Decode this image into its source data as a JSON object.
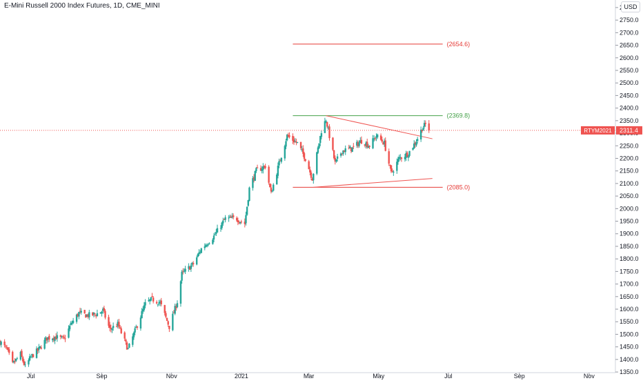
{
  "header": {
    "title": "E-Mini Russell 2000 Index Futures, 1D, CME_MINI",
    "currency": "USD"
  },
  "chart_data": {
    "type": "candlestick",
    "title": "E-Mini Russell 2000 Index Futures, 1D, CME_MINI",
    "ylim": [
      1320,
      2830
    ],
    "y_ticks": [
      1350,
      1400,
      1450,
      1500,
      1550,
      1600,
      1650,
      1700,
      1750,
      1800,
      1850,
      1900,
      1950,
      2000,
      2050,
      2100,
      2150,
      2200,
      2250,
      2300,
      2350,
      2400,
      2450,
      2500,
      2550,
      2600,
      2650,
      2700,
      2750,
      2800
    ],
    "x_ticks": [
      {
        "label": "Jul",
        "date": "2020-07-01"
      },
      {
        "label": "Sep",
        "date": "2020-09-01"
      },
      {
        "label": "Nov",
        "date": "2020-11-01"
      },
      {
        "label": "2021",
        "date": "2021-01-01"
      },
      {
        "label": "Mar",
        "date": "2021-03-01"
      },
      {
        "label": "May",
        "date": "2021-05-01"
      },
      {
        "label": "Jul",
        "date": "2021-07-01"
      },
      {
        "label": "Sep",
        "date": "2021-09-01"
      },
      {
        "label": "Nov",
        "date": "2021-11-01"
      }
    ],
    "xlim": [
      "2020-06-04",
      "2021-11-24"
    ],
    "colors": {
      "up": "#26a69a",
      "down": "#ef5350",
      "resistance": "#43a047",
      "level": "#e53935",
      "trend": "#ef5350",
      "axis_text": "#131722"
    },
    "price_path": [
      [
        "2020-06-04",
        1470
      ],
      [
        "2020-06-10",
        1440
      ],
      [
        "2020-06-15",
        1380
      ],
      [
        "2020-06-22",
        1420
      ],
      [
        "2020-06-26",
        1370
      ],
      [
        "2020-07-01",
        1410
      ],
      [
        "2020-07-08",
        1440
      ],
      [
        "2020-07-15",
        1485
      ],
      [
        "2020-07-22",
        1490
      ],
      [
        "2020-07-30",
        1480
      ],
      [
        "2020-08-05",
        1540
      ],
      [
        "2020-08-12",
        1585
      ],
      [
        "2020-08-19",
        1575
      ],
      [
        "2020-08-27",
        1580
      ],
      [
        "2020-09-02",
        1595
      ],
      [
        "2020-09-08",
        1520
      ],
      [
        "2020-09-15",
        1540
      ],
      [
        "2020-09-24",
        1440
      ],
      [
        "2020-10-01",
        1525
      ],
      [
        "2020-10-09",
        1620
      ],
      [
        "2020-10-15",
        1640
      ],
      [
        "2020-10-22",
        1625
      ],
      [
        "2020-10-30",
        1530
      ],
      [
        "2020-11-06",
        1630
      ],
      [
        "2020-11-10",
        1740
      ],
      [
        "2020-11-20",
        1780
      ],
      [
        "2020-11-27",
        1840
      ],
      [
        "2020-12-08",
        1890
      ],
      [
        "2020-12-18",
        1960
      ],
      [
        "2020-12-28",
        1960
      ],
      [
        "2021-01-04",
        1940
      ],
      [
        "2021-01-08",
        2080
      ],
      [
        "2021-01-14",
        2150
      ],
      [
        "2021-01-22",
        2170
      ],
      [
        "2021-01-27",
        2060
      ],
      [
        "2021-02-03",
        2180
      ],
      [
        "2021-02-10",
        2290
      ],
      [
        "2021-02-19",
        2260
      ],
      [
        "2021-02-26",
        2200
      ],
      [
        "2021-03-04",
        2120
      ],
      [
        "2021-03-12",
        2310
      ],
      [
        "2021-03-16",
        2355
      ],
      [
        "2021-03-24",
        2180
      ],
      [
        "2021-03-30",
        2230
      ],
      [
        "2021-04-08",
        2240
      ],
      [
        "2021-04-16",
        2270
      ],
      [
        "2021-04-23",
        2250
      ],
      [
        "2021-04-29",
        2290
      ],
      [
        "2021-05-06",
        2260
      ],
      [
        "2021-05-12",
        2140
      ],
      [
        "2021-05-19",
        2200
      ],
      [
        "2021-05-27",
        2220
      ],
      [
        "2021-06-03",
        2270
      ],
      [
        "2021-06-08",
        2320
      ],
      [
        "2021-06-11",
        2335
      ],
      [
        "2021-06-14",
        2315
      ]
    ],
    "drawings": {
      "horizontal_levels": [
        {
          "label": "(2654.6)",
          "value": 2654.6,
          "start": "2021-02-15",
          "end": "2021-06-26",
          "role": "level"
        },
        {
          "label": "(2369.8)",
          "value": 2369.8,
          "start": "2021-02-15",
          "end": "2021-06-26",
          "role": "resistance"
        },
        {
          "label": "(2085.0)",
          "value": 2085.0,
          "start": "2021-02-15",
          "end": "2021-06-26",
          "role": "level"
        }
      ],
      "trendlines": [
        {
          "from": [
            "2021-03-16",
            2369.8
          ],
          "to": [
            "2021-06-17",
            2278
          ]
        },
        {
          "from": [
            "2021-03-05",
            2085
          ],
          "to": [
            "2021-06-17",
            2120
          ]
        }
      ]
    },
    "last_price": {
      "symbol": "RTYM2021",
      "value": 2311.4,
      "display": "2311.4"
    }
  }
}
